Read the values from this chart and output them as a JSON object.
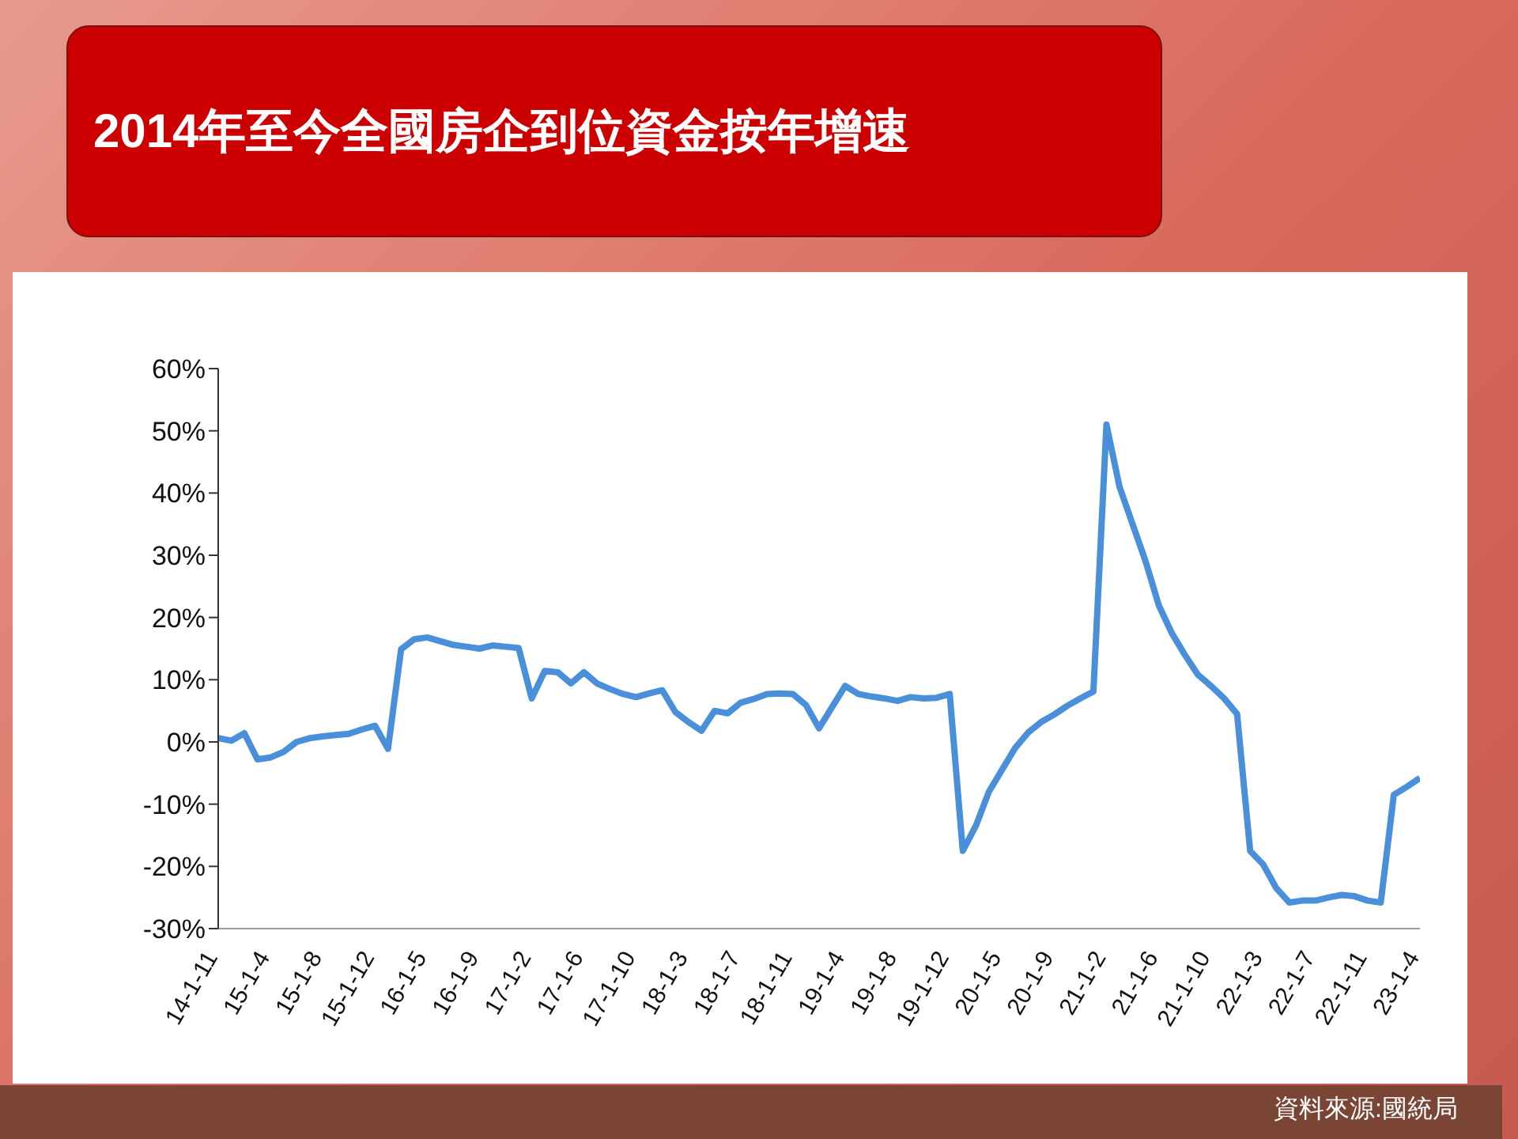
{
  "chart_data": {
    "type": "line",
    "title": "2014年至今全國房企到位資金按年增速",
    "categories": [
      "14-1-11",
      null,
      null,
      null,
      "15-1-4",
      null,
      null,
      null,
      "15-1-8",
      null,
      null,
      null,
      "15-1-12",
      null,
      null,
      null,
      "16-1-5",
      null,
      null,
      null,
      "16-1-9",
      null,
      null,
      null,
      "17-1-2",
      null,
      null,
      null,
      "17-1-6",
      null,
      null,
      null,
      "17-1-10",
      null,
      null,
      null,
      "18-1-3",
      null,
      null,
      null,
      "18-1-7",
      null,
      null,
      null,
      "18-1-11",
      null,
      null,
      null,
      "19-1-4",
      null,
      null,
      null,
      "19-1-8",
      null,
      null,
      null,
      "19-1-12",
      null,
      null,
      null,
      "20-1-5",
      null,
      null,
      null,
      "20-1-9",
      null,
      null,
      null,
      "21-1-2",
      null,
      null,
      null,
      "21-1-6",
      null,
      null,
      null,
      "21-1-10",
      null,
      null,
      null,
      "22-1-3",
      null,
      null,
      null,
      "22-1-7",
      null,
      null,
      null,
      "22-1-11",
      null,
      null,
      null,
      "23-1-4"
    ],
    "series": [
      {
        "color": "#4a8fd9",
        "values": [
          0.6,
          0.2,
          1.4,
          -2.8,
          -2.5,
          -1.6,
          0.0,
          0.6,
          0.9,
          1.1,
          1.3,
          2.0,
          2.6,
          -1.1,
          14.9,
          16.5,
          16.8,
          16.2,
          15.6,
          15.3,
          15.0,
          15.5,
          15.3,
          15.1,
          7.0,
          11.4,
          11.2,
          9.4,
          11.2,
          9.4,
          8.5,
          7.7,
          7.2,
          7.8,
          8.3,
          4.8,
          3.2,
          1.8,
          5.0,
          4.6,
          6.3,
          6.9,
          7.7,
          7.8,
          7.7,
          5.9,
          2.2,
          5.6,
          9.0,
          7.7,
          7.3,
          7.0,
          6.6,
          7.2,
          7.0,
          7.1,
          7.7,
          -17.5,
          -13.5,
          -8.0,
          -4.5,
          -1.0,
          1.5,
          3.2,
          4.4,
          5.8,
          7.0,
          8.1,
          51.0,
          41.0,
          35.0,
          29.0,
          22.0,
          17.5,
          14.0,
          10.8,
          9.0,
          7.0,
          4.5,
          -17.5,
          -19.7,
          -23.5,
          -25.8,
          -25.5,
          -25.5,
          -25.0,
          -24.6,
          -24.8,
          -25.5,
          -25.8,
          -8.5,
          -7.2,
          -5.8
        ]
      }
    ],
    "ylim": [
      -30,
      60
    ],
    "yticks": [
      {
        "value": -30,
        "label": "-30%"
      },
      {
        "value": -20,
        "label": "-20%"
      },
      {
        "value": -10,
        "label": "-10%"
      },
      {
        "value": 0,
        "label": "0%"
      },
      {
        "value": 10,
        "label": "10%"
      },
      {
        "value": 20,
        "label": "20%"
      },
      {
        "value": 30,
        "label": "30%"
      },
      {
        "value": 40,
        "label": "40%"
      },
      {
        "value": 50,
        "label": "50%"
      },
      {
        "value": 60,
        "label": "60%"
      }
    ],
    "grid": false,
    "annotations": [
      "資料來源:國統局"
    ]
  }
}
